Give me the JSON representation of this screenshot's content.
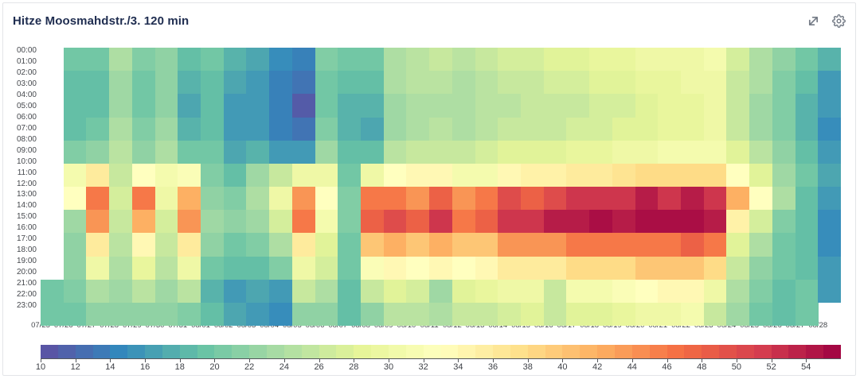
{
  "panel": {
    "title": "Hitze Moosmahdstr./3. 120 min"
  },
  "icons": [
    {
      "name": "expand-icon"
    },
    {
      "name": "gear-icon"
    }
  ],
  "chart_data": {
    "type": "heatmap",
    "title": "Hitze Moosmahdstr./3. 120 min",
    "bucket_minutes": 120,
    "xlabel": "",
    "ylabel": "",
    "y_hour_labels": [
      "00:00",
      "01:00",
      "02:00",
      "03:00",
      "04:00",
      "05:00",
      "06:00",
      "07:00",
      "08:00",
      "09:00",
      "10:00",
      "11:00",
      "12:00",
      "13:00",
      "14:00",
      "15:00",
      "16:00",
      "17:00",
      "18:00",
      "19:00",
      "20:00",
      "21:00",
      "22:00",
      "23:00"
    ],
    "x_dates": [
      "07/25",
      "07/26",
      "07/27",
      "07/28",
      "07/29",
      "07/30",
      "07/31",
      "08/01",
      "08/02",
      "08/03",
      "08/04",
      "08/05",
      "08/06",
      "08/07",
      "08/08",
      "08/09",
      "08/10",
      "08/11",
      "08/12",
      "08/13",
      "08/14",
      "08/15",
      "08/16",
      "08/17",
      "08/18",
      "08/19",
      "08/20",
      "08/21",
      "08/22",
      "08/23",
      "08/24",
      "08/25",
      "08/26",
      "08/27",
      "08/28"
    ],
    "row_start_hours": [
      0,
      2,
      4,
      6,
      8,
      10,
      12,
      14,
      16,
      18,
      20,
      22
    ],
    "columns": [
      [
        null,
        null,
        null,
        null,
        null,
        null,
        null,
        null,
        null,
        null,
        20,
        20
      ],
      [
        20,
        19,
        19,
        19,
        21,
        31,
        33,
        23,
        22,
        22,
        21,
        20
      ],
      [
        20,
        19,
        19,
        20,
        22,
        36,
        46,
        44,
        36,
        30,
        24,
        22
      ],
      [
        24,
        23,
        23,
        24,
        25,
        26,
        27,
        26,
        25,
        24,
        23,
        22
      ],
      [
        21,
        20,
        20,
        21,
        22,
        33,
        46,
        42,
        34,
        29,
        25,
        22
      ],
      [
        22,
        22,
        22,
        23,
        24,
        31,
        30,
        27,
        26,
        25,
        23,
        22
      ],
      [
        19,
        18,
        17,
        18,
        20,
        32,
        42,
        44,
        36,
        30,
        25,
        21
      ],
      [
        20,
        19,
        19,
        19,
        20,
        21,
        22,
        23,
        22,
        20,
        18,
        19
      ],
      [
        18,
        17,
        16,
        16,
        17,
        19,
        21,
        22,
        20,
        19,
        16,
        17
      ],
      [
        17,
        16,
        16,
        16,
        18,
        23,
        24,
        23,
        21,
        19,
        17,
        16
      ],
      [
        15,
        14,
        14,
        14,
        16,
        26,
        30,
        27,
        24,
        21,
        16,
        15
      ],
      [
        14,
        13,
        11,
        13,
        16,
        30,
        44,
        46,
        36,
        30,
        26,
        22
      ],
      [
        21,
        20,
        20,
        21,
        23,
        30,
        33,
        31,
        28,
        27,
        24,
        22
      ],
      [
        20,
        19,
        18,
        18,
        19,
        20,
        21,
        21,
        20,
        20,
        19,
        19
      ],
      [
        20,
        19,
        18,
        17,
        19,
        30,
        46,
        48,
        40,
        32,
        26,
        22
      ],
      [
        24,
        24,
        23,
        23,
        25,
        33,
        46,
        50,
        42,
        34,
        28,
        25
      ],
      [
        25,
        25,
        24,
        24,
        26,
        34,
        44,
        48,
        40,
        33,
        27,
        25
      ],
      [
        26,
        25,
        24,
        25,
        26,
        34,
        48,
        52,
        42,
        34,
        23,
        24
      ],
      [
        25,
        24,
        24,
        24,
        26,
        31,
        44,
        46,
        40,
        33,
        28,
        26
      ],
      [
        26,
        25,
        25,
        25,
        27,
        31,
        46,
        48,
        40,
        34,
        29,
        26
      ],
      [
        27,
        26,
        25,
        26,
        28,
        34,
        50,
        52,
        44,
        36,
        30,
        27
      ],
      [
        27,
        26,
        26,
        26,
        28,
        35,
        48,
        52,
        44,
        36,
        30,
        28
      ],
      [
        28,
        27,
        26,
        26,
        28,
        35,
        50,
        54,
        44,
        36,
        26,
        26
      ],
      [
        28,
        27,
        26,
        27,
        29,
        36,
        52,
        54,
        46,
        38,
        31,
        28
      ],
      [
        29,
        28,
        27,
        27,
        29,
        36,
        52,
        55,
        46,
        38,
        31,
        28
      ],
      [
        29,
        28,
        27,
        28,
        30,
        37,
        52,
        54,
        46,
        38,
        32,
        29
      ],
      [
        30,
        29,
        28,
        28,
        30,
        38,
        54,
        55,
        46,
        40,
        33,
        30
      ],
      [
        30,
        29,
        29,
        29,
        31,
        38,
        52,
        55,
        46,
        40,
        34,
        30
      ],
      [
        30,
        30,
        29,
        29,
        31,
        38,
        54,
        55,
        48,
        40,
        34,
        31
      ],
      [
        31,
        30,
        30,
        30,
        31,
        38,
        52,
        54,
        46,
        38,
        30,
        26
      ],
      [
        27,
        26,
        26,
        26,
        28,
        33,
        42,
        35,
        28,
        26,
        24,
        23
      ],
      [
        24,
        24,
        23,
        23,
        25,
        28,
        33,
        27,
        24,
        22,
        21,
        20
      ],
      [
        22,
        21,
        21,
        21,
        22,
        23,
        24,
        21,
        20,
        20,
        19,
        19
      ],
      [
        20,
        19,
        18,
        18,
        19,
        20,
        19,
        19,
        19,
        19,
        20,
        20
      ],
      [
        18,
        16,
        16,
        15,
        16,
        17,
        16,
        15,
        15,
        16,
        16,
        null
      ]
    ],
    "colorbar": {
      "min": 10,
      "max": 56,
      "ticks": [
        10,
        12,
        14,
        16,
        18,
        20,
        22,
        24,
        26,
        28,
        30,
        32,
        34,
        36,
        38,
        40,
        42,
        44,
        46,
        48,
        50,
        52,
        54
      ],
      "palette_stops": [
        "#5e4fa2",
        "#3288bd",
        "#66c2a5",
        "#abdda4",
        "#e6f598",
        "#ffffbf",
        "#fee08b",
        "#fdae61",
        "#f46d43",
        "#d53e4f",
        "#9e0142"
      ],
      "segments": 46
    },
    "legend_position": "bottom",
    "grid": false
  }
}
